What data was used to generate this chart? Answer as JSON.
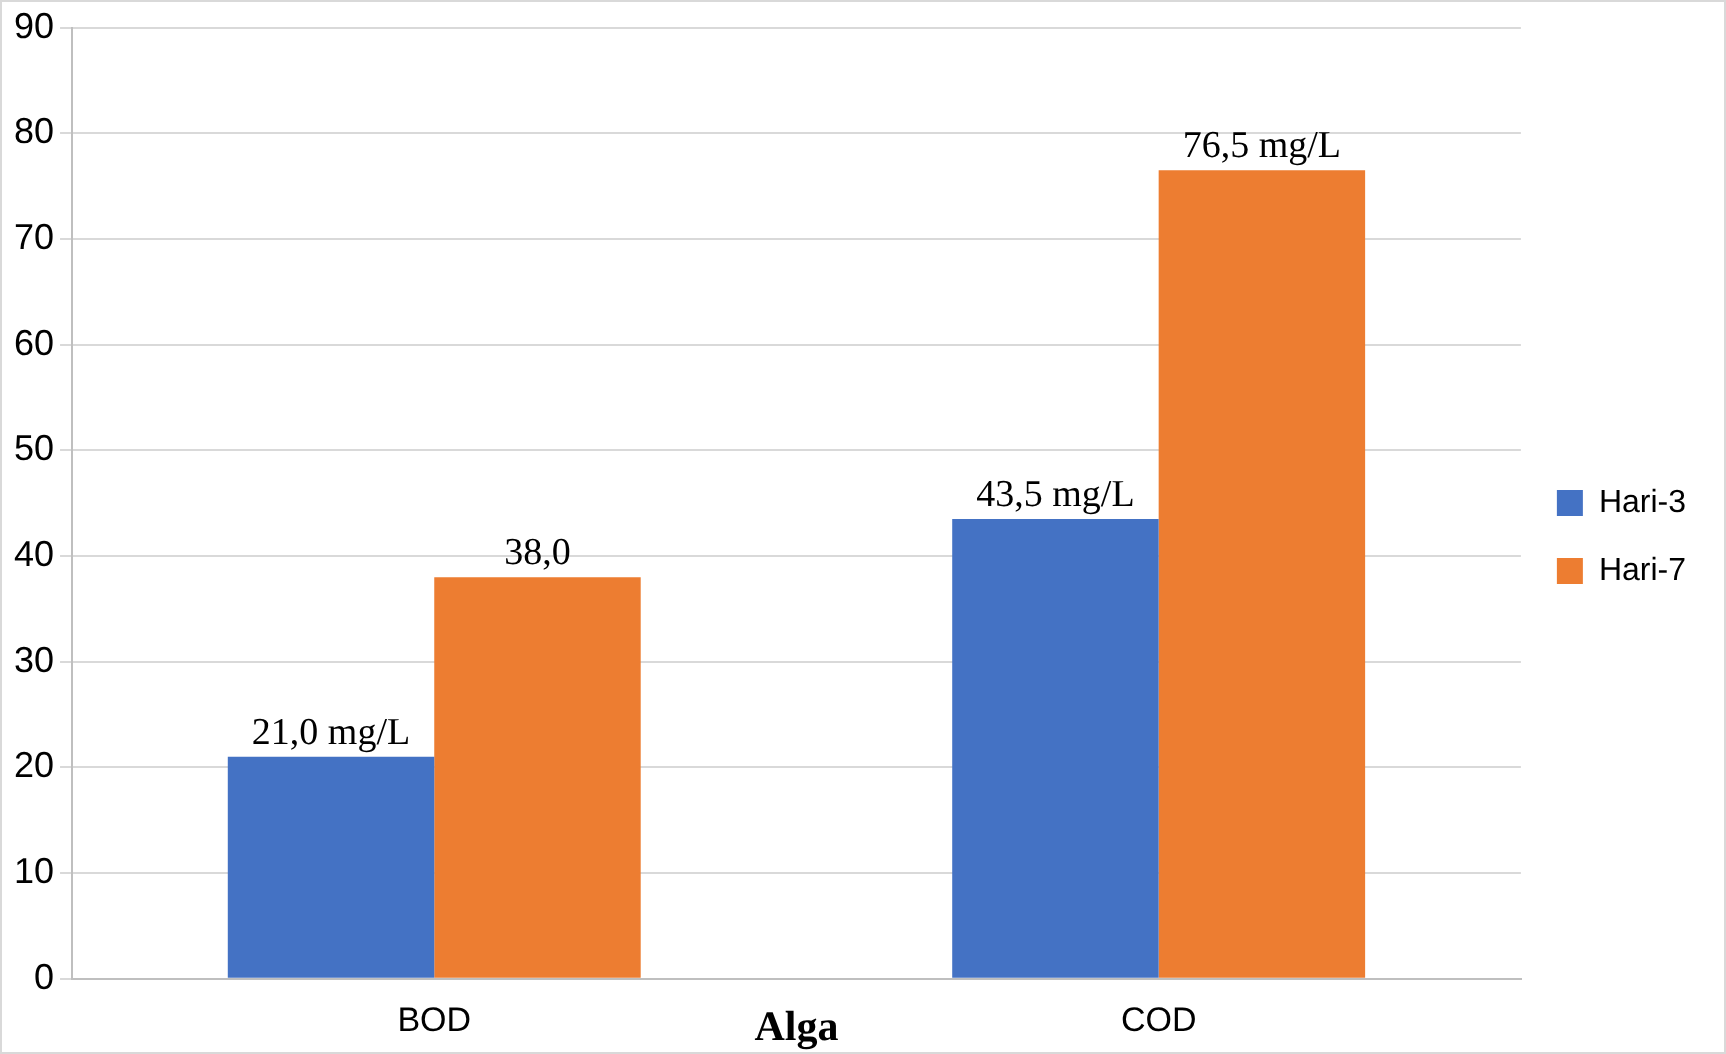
{
  "chart_data": {
    "type": "bar",
    "xlabel": "Alga",
    "categories": [
      "BOD",
      "COD"
    ],
    "series": [
      {
        "name": "Hari-3",
        "color": "#4472c4",
        "values": [
          21.0,
          43.5
        ],
        "value_labels": [
          "21,0 mg/L",
          "43,5 mg/L"
        ]
      },
      {
        "name": "Hari-7",
        "color": "#ed7d31",
        "values": [
          38.0,
          76.5
        ],
        "value_labels": [
          "38,0",
          "76,5 mg/L"
        ]
      }
    ],
    "ylim": [
      0,
      90
    ],
    "yticks": [
      0,
      10,
      20,
      30,
      40,
      50,
      60,
      70,
      80,
      90
    ],
    "grid": "y",
    "legend": "right"
  }
}
